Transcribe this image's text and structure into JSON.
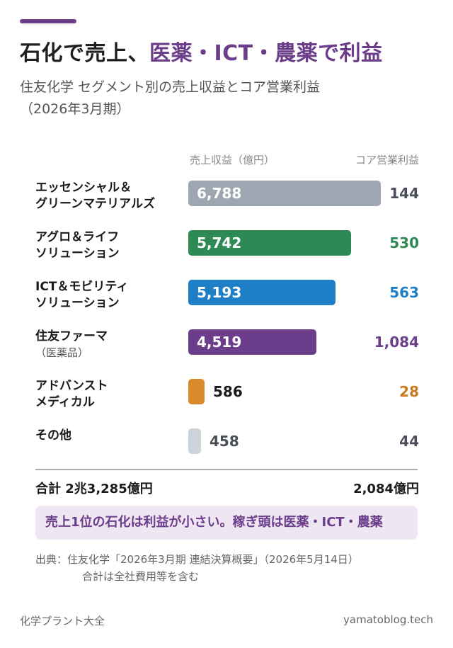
{
  "header": {
    "title_prefix": "石化で売上、",
    "title_highlight": "医薬・ICT・農薬で利益",
    "subtitle_line1": "住友化学 セグメント別の売上収益とコア営業利益",
    "subtitle_line2": "（2026年3月期）"
  },
  "columns": {
    "revenue": "売上収益（億円）",
    "core_profit": "コア営業利益"
  },
  "chart_data": {
    "type": "bar",
    "orientation": "horizontal",
    "xlim": [
      0,
      6788
    ],
    "categories": [
      "エッセンシャル＆グリーンマテリアルズ",
      "アグロ＆ライフソリューション",
      "ICT＆モビリティソリューション",
      "住友ファーマ（医薬品）",
      "アドバンストメディカル",
      "その他"
    ],
    "series": [
      {
        "name": "売上収益（億円）",
        "values": [
          6788,
          5742,
          5193,
          4519,
          586,
          458
        ]
      },
      {
        "name": "コア営業利益",
        "values": [
          144,
          530,
          563,
          1084,
          28,
          44
        ]
      }
    ],
    "rows": [
      {
        "label1": "エッセンシャル＆",
        "label2": "グリーンマテリアルズ",
        "sub": "",
        "revenue": 6788,
        "revenue_text": "6,788",
        "core_text": "144",
        "color": "#9ea7b1",
        "core_color": "#4a4f57"
      },
      {
        "label1": "アグロ＆ライフ",
        "label2": "ソリューション",
        "sub": "",
        "revenue": 5742,
        "revenue_text": "5,742",
        "core_text": "530",
        "color": "#2e8a55",
        "core_color": "#2e8a55"
      },
      {
        "label1": "ICT＆モビリティ",
        "label2": "ソリューション",
        "sub": "",
        "revenue": 5193,
        "revenue_text": "5,193",
        "core_text": "563",
        "color": "#1e7fc6",
        "core_color": "#1e7fc6"
      },
      {
        "label1": "住友ファーマ",
        "label2": "",
        "sub": "（医薬品）",
        "revenue": 4519,
        "revenue_text": "4,519",
        "core_text": "1,084",
        "color": "#6b3d8a",
        "core_color": "#6b3d8a"
      },
      {
        "label1": "アドバンスト",
        "label2": "メディカル",
        "sub": "",
        "revenue": 586,
        "revenue_text": "586",
        "core_text": "28",
        "color": "#d98b2b",
        "core_color": "#c77a1e"
      },
      {
        "label1": "その他",
        "label2": "",
        "sub": "",
        "revenue": 458,
        "revenue_text": "458",
        "core_text": "44",
        "color": "#ccd3da",
        "core_color": "#4a4f57"
      }
    ]
  },
  "totals": {
    "left": "合計 2兆3,285億円",
    "right": "2,084億円"
  },
  "callout": "売上1位の石化は利益が小さい。稼ぎ頭は医薬・ICT・農薬",
  "source": {
    "line1": "出典：住友化学「2026年3月期 連結決算概要」（2026年5月14日）",
    "line2": "合計は全社費用等を含む"
  },
  "footer": {
    "left": "化学プラント大全",
    "right": "yamatoblog.tech"
  }
}
